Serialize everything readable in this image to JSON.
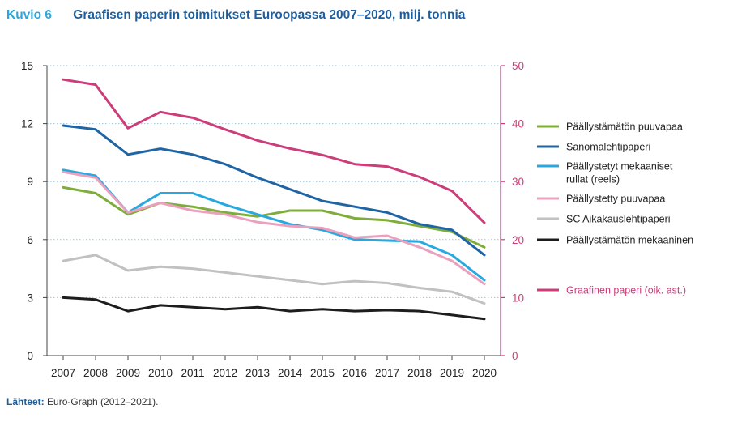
{
  "header": {
    "figure_label": "Kuvio 6",
    "title": "Graafisen paperin toimitukset Euroopassa 2007–2020, milj. tonnia"
  },
  "source": {
    "label": "Lähteet:",
    "text": "Euro-Graph (2012–2021)."
  },
  "colors": {
    "accent_blue": "#2aa6dc",
    "title_blue": "#1d5e9e",
    "right_axis": "#cc3d7a",
    "grid": "#9fc2d6"
  },
  "chart_data": {
    "type": "line",
    "x": [
      "2007",
      "2008",
      "2009",
      "2010",
      "2011",
      "2012",
      "2013",
      "2014",
      "2015",
      "2016",
      "2017",
      "2018",
      "2019",
      "2020"
    ],
    "ylim_left": [
      0,
      15
    ],
    "yticks_left": [
      0,
      3,
      6,
      9,
      12,
      15
    ],
    "ylim_right": [
      0,
      50
    ],
    "yticks_right": [
      0,
      10,
      20,
      30,
      40,
      50
    ],
    "grid": "horizontal dotted",
    "legend_placement": "right",
    "series": [
      {
        "name": "Päällystämätön puuvapaa",
        "axis": "left",
        "color": "#7fad3a",
        "values": [
          8.7,
          8.4,
          7.3,
          7.9,
          7.7,
          7.4,
          7.2,
          7.5,
          7.5,
          7.1,
          7.0,
          6.7,
          6.4,
          5.6
        ]
      },
      {
        "name": "Sanomalehtipaperi",
        "axis": "left",
        "color": "#1f64a5",
        "values": [
          11.9,
          11.7,
          10.4,
          10.7,
          10.4,
          9.9,
          9.2,
          8.6,
          8.0,
          7.7,
          7.4,
          6.8,
          6.5,
          5.2
        ]
      },
      {
        "name": "Päällystetyt mekaaniset rullat (reels)",
        "axis": "left",
        "color": "#27a8df",
        "values": [
          9.6,
          9.3,
          7.4,
          8.4,
          8.4,
          7.8,
          7.3,
          6.8,
          6.5,
          6.0,
          5.95,
          5.9,
          5.2,
          3.9
        ]
      },
      {
        "name": "Päällystetty puuvapaa",
        "axis": "left",
        "color": "#eba0bd",
        "values": [
          9.5,
          9.2,
          7.4,
          7.9,
          7.5,
          7.3,
          6.9,
          6.7,
          6.6,
          6.1,
          6.2,
          5.6,
          4.9,
          3.7
        ]
      },
      {
        "name": "SC Aikakauslehtipaperi",
        "axis": "left",
        "color": "#c1c1c1",
        "values": [
          4.9,
          5.2,
          4.4,
          4.6,
          4.5,
          4.3,
          4.1,
          3.9,
          3.7,
          3.85,
          3.75,
          3.5,
          3.3,
          2.7
        ]
      },
      {
        "name": "Päällystämätön mekaaninen",
        "axis": "left",
        "color": "#1d1d1b",
        "values": [
          3.0,
          2.9,
          2.3,
          2.6,
          2.5,
          2.4,
          2.5,
          2.3,
          2.4,
          2.3,
          2.35,
          2.3,
          2.1,
          1.9
        ]
      },
      {
        "name": "Graafinen paperi (oik. ast.)",
        "axis": "right",
        "color": "#cc3d7a",
        "values": [
          47.6,
          46.7,
          39.2,
          42.0,
          41.0,
          39.0,
          37.1,
          35.7,
          34.6,
          33.0,
          32.6,
          30.8,
          28.4,
          22.9
        ]
      }
    ]
  }
}
